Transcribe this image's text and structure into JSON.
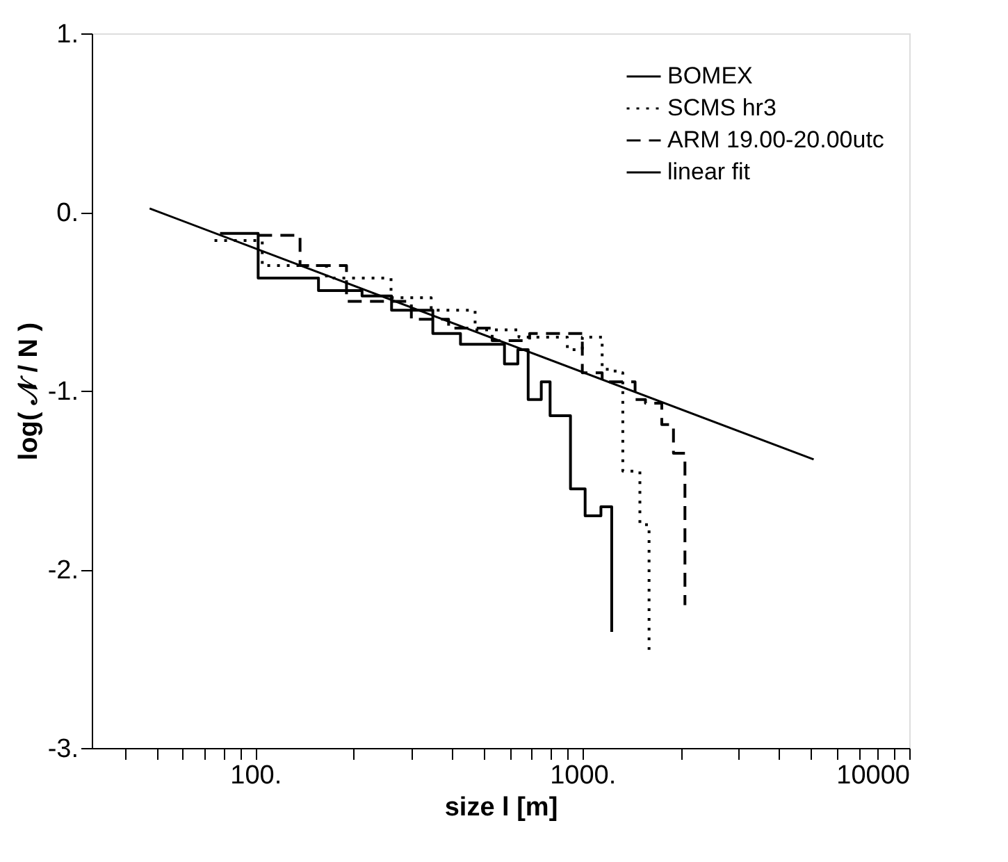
{
  "chart_data": {
    "type": "step",
    "xlabel": "size l [m]",
    "ylabel": "log( 𝒩 / N )",
    "log": "x",
    "grid": false,
    "legend": "top right",
    "marker": "none",
    "xlim": [
      31.6,
      10000
    ],
    "ylim": [
      -3,
      1
    ],
    "xticks": [
      {
        "value": 40,
        "label": null
      },
      {
        "value": 50,
        "label": null
      },
      {
        "value": 60,
        "label": null
      },
      {
        "value": 70,
        "label": null
      },
      {
        "value": 80,
        "label": null
      },
      {
        "value": 90,
        "label": null
      },
      {
        "value": 100,
        "label": "100."
      },
      {
        "value": 200,
        "label": null
      },
      {
        "value": 300,
        "label": null
      },
      {
        "value": 400,
        "label": null
      },
      {
        "value": 500,
        "label": null
      },
      {
        "value": 600,
        "label": null
      },
      {
        "value": 700,
        "label": null
      },
      {
        "value": 800,
        "label": null
      },
      {
        "value": 900,
        "label": null
      },
      {
        "value": 1000,
        "label": "1000."
      },
      {
        "value": 2000,
        "label": null
      },
      {
        "value": 3000,
        "label": null
      },
      {
        "value": 4000,
        "label": null
      },
      {
        "value": 5000,
        "label": null
      },
      {
        "value": 6000,
        "label": null
      },
      {
        "value": 7000,
        "label": null
      },
      {
        "value": 8000,
        "label": null
      },
      {
        "value": 9000,
        "label": null
      },
      10000
    ],
    "yticks": [
      {
        "value": -3,
        "label": "-3."
      },
      {
        "value": -2,
        "label": "-2."
      },
      {
        "value": -1,
        "label": "-1."
      },
      {
        "value": 0,
        "label": "0."
      },
      {
        "value": 1,
        "label": "1."
      }
    ],
    "series": [
      {
        "name": "BOMEX",
        "line_style": "solid",
        "color": "#000000",
        "x": [
          78,
          102,
          156,
          212,
          261,
          349,
          424,
          578,
          635,
          683,
          749,
          797,
          920,
          1020,
          1140,
          1230
        ],
        "values": [
          -0.12,
          -0.37,
          -0.44,
          -0.47,
          -0.55,
          -0.68,
          -0.74,
          -0.85,
          -0.77,
          -1.05,
          -0.95,
          -1.14,
          -1.55,
          -1.7,
          -1.65,
          -2.35
        ]
      },
      {
        "name": "SCMS hr3",
        "line_style": "dotted",
        "color": "#000000",
        "x": [
          75,
          105,
          165,
          260,
          345,
          470,
          640,
          900,
          1000,
          1150,
          1260,
          1330,
          1500,
          1600
        ],
        "values": [
          -0.16,
          -0.3,
          -0.37,
          -0.48,
          -0.55,
          -0.66,
          -0.7,
          -0.77,
          -0.7,
          -0.88,
          -0.9,
          -1.45,
          -1.75,
          -2.45
        ]
      },
      {
        "name": "ARM 19.00-20.00utc",
        "line_style": "dashed",
        "color": "#000000",
        "x": [
          102,
          137,
          190,
          300,
          390,
          530,
          690,
          1000,
          1150,
          1450,
          1560,
          1750,
          1900,
          2060
        ],
        "values": [
          -0.13,
          -0.3,
          -0.5,
          -0.6,
          -0.65,
          -0.72,
          -0.68,
          -0.9,
          -0.95,
          -1.05,
          -1.07,
          -1.19,
          -1.35,
          -2.2
        ]
      },
      {
        "name": "linear fit",
        "type": "line",
        "line_style": "solid",
        "color": "#000000",
        "x": [
          47.5,
          5100
        ],
        "values": [
          0.02,
          -1.385
        ]
      }
    ]
  }
}
